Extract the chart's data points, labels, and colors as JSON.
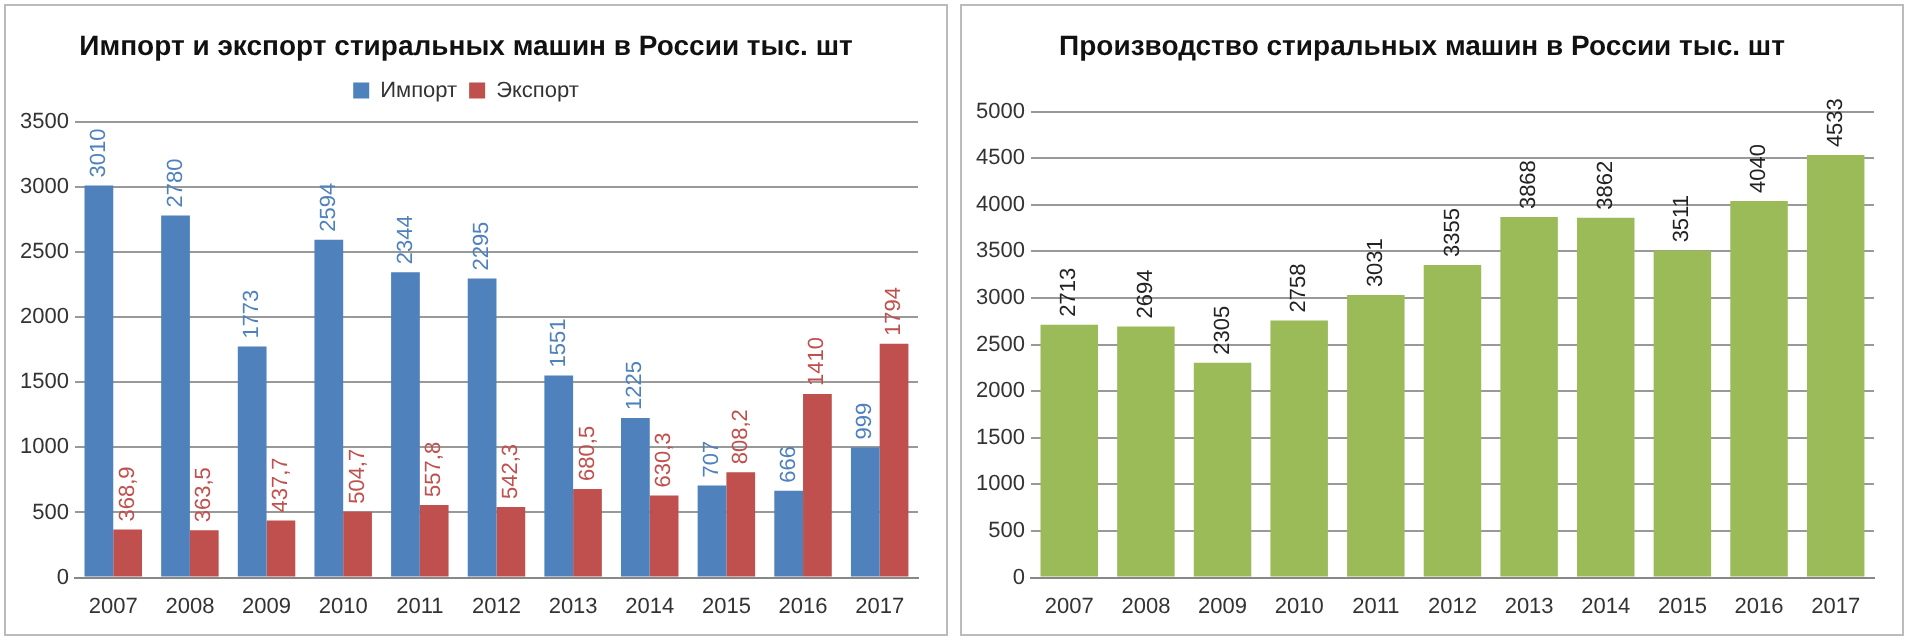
{
  "chart_data": [
    {
      "type": "bar",
      "title": "Импорт и экспорт стиральных машин в России тыс. шт",
      "categories": [
        "2007",
        "2008",
        "2009",
        "2010",
        "2011",
        "2012",
        "2013",
        "2014",
        "2015",
        "2016",
        "2017"
      ],
      "series": [
        {
          "name": "Импорт",
          "color": "#4f81bd",
          "values": [
            3010,
            2780,
            1773,
            2594,
            2344,
            2295,
            1551,
            1225,
            707,
            666,
            999
          ],
          "value_labels": [
            "3010",
            "2780",
            "1773",
            "2594",
            "2344",
            "2295",
            "1551",
            "1225",
            "707",
            "666",
            "999"
          ]
        },
        {
          "name": "Экспорт",
          "color": "#c0504d",
          "values": [
            368.9,
            363.5,
            437.7,
            504.7,
            557.8,
            542.3,
            680.5,
            630.3,
            808.2,
            1410,
            1794
          ],
          "value_labels": [
            "368,9",
            "363,5",
            "437,7",
            "504,7",
            "557,8",
            "542,3",
            "680,5",
            "630,3",
            "808,2",
            "1410",
            "1794"
          ]
        }
      ],
      "ylim": [
        0,
        3500
      ],
      "yticks": [
        0,
        500,
        1000,
        1500,
        2000,
        2500,
        3000,
        3500
      ],
      "grid": "y",
      "legend": "top"
    },
    {
      "type": "bar",
      "title": "Производство стиральных машин в России тыс. шт",
      "categories": [
        "2007",
        "2008",
        "2009",
        "2010",
        "2011",
        "2012",
        "2013",
        "2014",
        "2015",
        "2016",
        "2017"
      ],
      "series": [
        {
          "color": "#9bbb59",
          "values": [
            2713,
            2694,
            2305,
            2758,
            3031,
            3355,
            3868,
            3862,
            3511,
            4040,
            4533
          ]
        }
      ],
      "ylim": [
        0,
        5000
      ],
      "yticks": [
        0,
        500,
        1000,
        1500,
        2000,
        2500,
        3000,
        3500,
        4000,
        4500,
        5000
      ],
      "grid": "y",
      "data_labels": true
    }
  ]
}
